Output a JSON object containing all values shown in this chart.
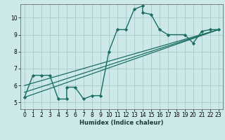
{
  "xlabel": "Humidex (Indice chaleur)",
  "bg_color": "#cce8e8",
  "grid_color": "#b0cece",
  "line_color": "#1a6e64",
  "xlim": [
    -0.5,
    23.5
  ],
  "ylim": [
    4.6,
    10.8
  ],
  "yticks": [
    5,
    6,
    7,
    8,
    9,
    10
  ],
  "xticks": [
    0,
    1,
    2,
    3,
    4,
    5,
    6,
    7,
    8,
    9,
    10,
    11,
    12,
    13,
    14,
    15,
    16,
    17,
    18,
    19,
    20,
    21,
    22,
    23
  ],
  "series1_x": [
    0,
    1,
    2,
    3,
    4,
    5,
    5,
    6,
    7,
    8,
    9,
    10,
    11,
    12,
    13,
    14,
    14,
    15,
    16,
    17,
    19,
    20,
    21,
    22,
    23
  ],
  "series1_y": [
    5.3,
    6.6,
    6.6,
    6.6,
    5.2,
    5.2,
    5.9,
    5.9,
    5.2,
    5.4,
    5.4,
    8.0,
    9.3,
    9.3,
    10.5,
    10.7,
    10.3,
    10.2,
    9.3,
    9.0,
    9.0,
    8.5,
    9.2,
    9.3,
    9.3
  ],
  "line2_x": [
    0,
    23
  ],
  "line2_y": [
    5.3,
    9.3
  ],
  "line3_x": [
    0,
    23
  ],
  "line3_y": [
    5.6,
    9.3
  ],
  "line4_x": [
    0,
    23
  ],
  "line4_y": [
    6.0,
    9.3
  ]
}
